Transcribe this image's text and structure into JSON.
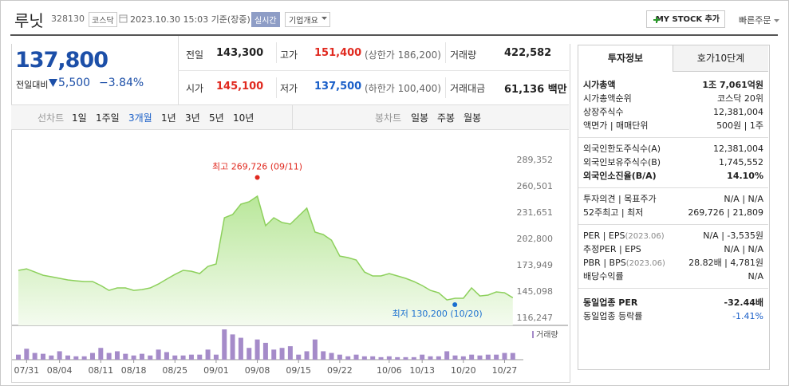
{
  "header": {
    "name": "루닛",
    "code": "328130",
    "market": "코스닥",
    "datetime": "2023.10.30 15:03 기준(장중)",
    "realtime": "실시간",
    "overview": "기업개요",
    "mystock": "MY STOCK 추가",
    "quickorder": "빠른주문"
  },
  "quote": {
    "price": "137,800",
    "change_label": "전일대비",
    "change": "5,500",
    "rate": "−3.84%",
    "stats": [
      {
        "label": "전일",
        "value": "143,300"
      },
      {
        "label": "고가",
        "value": "151,400",
        "note": "(상한가 186,200)",
        "color": "#e0291f"
      },
      {
        "label": "거래량",
        "value": "422,582"
      },
      {
        "label": "시가",
        "value": "145,100",
        "color": "#e0291f"
      },
      {
        "label": "저가",
        "value": "137,500",
        "note": "(하한가 100,400)",
        "color": "#1a5fc8"
      },
      {
        "label": "거래대금",
        "value": "61,136 백만"
      }
    ]
  },
  "chart_tabs": {
    "line_label": "선차트",
    "line": [
      "1일",
      "1주일",
      "3개월",
      "1년",
      "3년",
      "5년",
      "10년"
    ],
    "line_active": "3개월",
    "candle_label": "봉차트",
    "candle": [
      "일봉",
      "주봉",
      "월봉"
    ]
  },
  "invest": {
    "tabs": [
      "투자정보",
      "호가10단계"
    ],
    "groups": [
      [
        {
          "label": "시가총액",
          "value": "1조 7,061억원",
          "emphasis": true
        },
        {
          "label": "시가총액순위",
          "value": "코스닥 20위"
        },
        {
          "label": "상장주식수",
          "value": "12,381,004"
        },
        {
          "label": "액면가 | 매매단위",
          "value": "500원 | 1주"
        }
      ],
      [
        {
          "label": "외국인한도주식수(A)",
          "value": "12,381,004"
        },
        {
          "label": "외국인보유주식수(B)",
          "value": "1,745,552"
        },
        {
          "label": "외국인소진율(B/A)",
          "value": "14.10%",
          "emphasis": true
        }
      ],
      [
        {
          "label": "투자의견 | 목표주가",
          "value": "N/A | N/A"
        },
        {
          "label": "52주최고 | 최저",
          "value": "269,726 | 21,809"
        }
      ],
      [
        {
          "label": "PER | EPS",
          "note": "(2023.06)",
          "value": "N/A | -3,535원"
        },
        {
          "label": "추정PER | EPS",
          "value": "N/A | N/A"
        },
        {
          "label": "PBR | BPS",
          "note": "(2023.06)",
          "value": "28.82배 | 4,781원"
        },
        {
          "label": "배당수익률",
          "value": "N/A"
        }
      ],
      [
        {
          "label": "동일업종 PER",
          "value": "-32.44배",
          "emphasis": true
        },
        {
          "label": "동일업종 등락률",
          "value": "-1.41%",
          "color": "#1a5fc8"
        }
      ]
    ]
  },
  "chart_data": {
    "type": "line",
    "color": "#8dd05c",
    "categories": [
      null,
      "07/31",
      null,
      null,
      null,
      "08/04",
      null,
      null,
      null,
      null,
      "08/11",
      null,
      null,
      null,
      "08/18",
      null,
      null,
      null,
      null,
      "08/25",
      null,
      null,
      null,
      null,
      "09/01",
      null,
      null,
      null,
      null,
      "09/08",
      null,
      null,
      null,
      null,
      "09/15",
      null,
      null,
      null,
      null,
      "09/22",
      null,
      null,
      null,
      null,
      null,
      "10/06",
      null,
      null,
      null,
      "10/13",
      null,
      null,
      null,
      null,
      "10/20",
      null,
      null,
      null,
      null,
      "10/27",
      null
    ],
    "values": [
      167800,
      169500,
      166000,
      162500,
      160800,
      159100,
      157300,
      156400,
      155600,
      155600,
      151200,
      145900,
      148600,
      148600,
      145900,
      146800,
      148600,
      152900,
      158200,
      163400,
      167800,
      166900,
      164300,
      172200,
      174800,
      225500,
      229000,
      240400,
      243000,
      249100,
      216800,
      225500,
      220300,
      218500,
      227300,
      236000,
      209800,
      207100,
      201000,
      183500,
      181800,
      179200,
      166000,
      161700,
      161700,
      164300,
      161700,
      159100,
      155600,
      151200,
      145900,
      143300,
      135400,
      137200,
      137200,
      148600,
      139800,
      140700,
      144200,
      143300,
      137800
    ],
    "volume": {
      "name": "거래량",
      "color": "#a58bc9",
      "values": [
        318000,
        689000,
        424000,
        371000,
        265000,
        530000,
        265000,
        212000,
        212000,
        424000,
        742000,
        424000,
        530000,
        371000,
        265000,
        371000,
        265000,
        636000,
        477000,
        265000,
        265000,
        318000,
        318000,
        636000,
        318000,
        1908000,
        1590000,
        1378000,
        742000,
        1272000,
        1060000,
        636000,
        742000,
        848000,
        318000,
        530000,
        1272000,
        530000,
        424000,
        318000,
        212000,
        318000,
        212000,
        212000,
        159000,
        212000,
        159000,
        159000,
        159000,
        318000,
        212000,
        212000,
        530000,
        265000,
        212000,
        318000,
        265000,
        318000,
        318000,
        424000,
        422582
      ]
    },
    "ylim": [
      116247,
      289352
    ],
    "yticks": [
      {
        "value": 116247,
        "label": "116,247"
      },
      {
        "value": 145098,
        "label": "145,098"
      },
      {
        "value": 173949,
        "label": "173,949"
      },
      {
        "value": 202800,
        "label": "202,800"
      },
      {
        "value": 231651,
        "label": "231,651"
      },
      {
        "value": 260501,
        "label": "260,501"
      },
      {
        "value": 289352,
        "label": "289,352"
      }
    ],
    "annotations": [
      {
        "text": "최고 269,726 (09/11)",
        "value": 269726,
        "color": "#e0291f"
      },
      {
        "text": "최저 130,200 (10/20)",
        "value": 130200,
        "color": "#1a6fd0"
      }
    ]
  }
}
